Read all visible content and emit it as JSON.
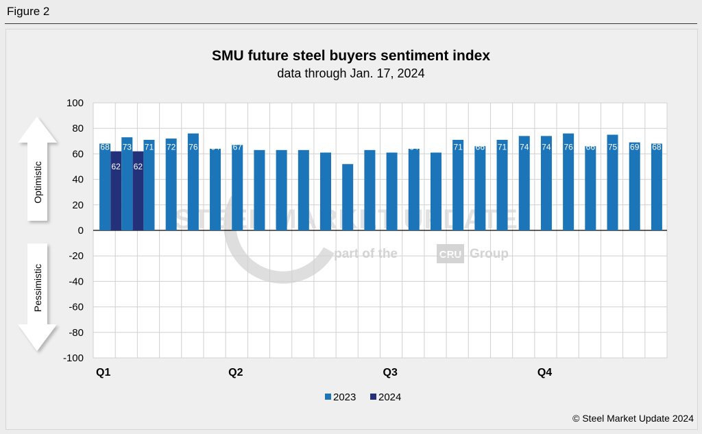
{
  "figure_label": "Figure 2",
  "copyright": "© Steel Market Update 2024",
  "watermark": {
    "main": "STEEL MARKET UPDATE",
    "sub_left": "part of the",
    "sub_logo": "CRU",
    "sub_right": "Group"
  },
  "side_labels": {
    "upper": "Optimistic",
    "lower": "Pessimistic"
  },
  "colors": {
    "series_2023": "#1b75b8",
    "series_2024": "#23307a",
    "arrow": "#ffffff",
    "zero_line": "#000000",
    "grid": "#d0d0d0"
  },
  "chart_data": {
    "type": "bar",
    "title": "SMU future steel buyers sentiment index",
    "subtitle": "data through Jan. 17, 2024",
    "xlabel": "",
    "ylabel": "",
    "ylim": [
      -100,
      100
    ],
    "yticks": [
      -100,
      -80,
      -60,
      -40,
      -20,
      0,
      20,
      40,
      60,
      80,
      100
    ],
    "grid": true,
    "legend_position": "bottom",
    "quarter_labels": [
      {
        "label": "Q1",
        "period_index": 0
      },
      {
        "label": "Q2",
        "period_index": 6
      },
      {
        "label": "Q3",
        "period_index": 13
      },
      {
        "label": "Q4",
        "period_index": 20
      }
    ],
    "periods": 26,
    "series": [
      {
        "name": "2023",
        "color": "#1b75b8",
        "values": [
          68,
          73,
          71,
          72,
          76,
          64,
          67,
          63,
          63,
          63,
          61,
          52,
          63,
          61,
          64,
          61,
          71,
          66,
          71,
          74,
          74,
          76,
          66,
          75,
          69,
          68
        ]
      },
      {
        "name": "2024",
        "color": "#23307a",
        "values": [
          62,
          62
        ]
      }
    ]
  }
}
